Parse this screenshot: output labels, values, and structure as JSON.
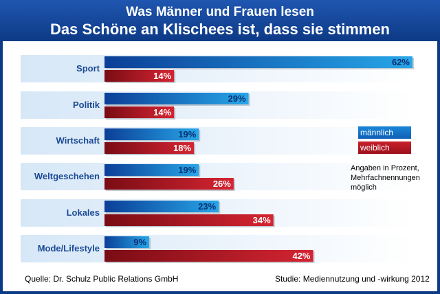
{
  "title_line1": "Was Männer und Frauen lesen",
  "title_line2": "Das Schöne an Klischees ist, dass sie stimmen",
  "chart_data": {
    "type": "bar",
    "orientation": "horizontal",
    "unit": "%",
    "xlim": [
      0,
      62
    ],
    "categories": [
      "Sport",
      "Politik",
      "Wirtschaft",
      "Weltgeschehen",
      "Lokales",
      "Mode/Lifestyle"
    ],
    "series": [
      {
        "name": "männlich",
        "values": [
          62,
          29,
          19,
          19,
          23,
          9
        ],
        "color": "#1a7fd4"
      },
      {
        "name": "weiblich",
        "values": [
          14,
          14,
          18,
          26,
          34,
          42
        ],
        "color": "#b81824"
      }
    ]
  },
  "legend": {
    "male": "männlich",
    "female": "weiblich"
  },
  "note": [
    "Angaben in Prozent,",
    "Mehrfachnennungen",
    "möglich"
  ],
  "source": "Quelle: Dr. Schulz Public Relations GmbH",
  "study": "Studie: Mediennutzung und -wirkung 2012",
  "colors": {
    "header": "#0d3a86",
    "band": "#e3eef9",
    "label": "#1b4a93"
  }
}
